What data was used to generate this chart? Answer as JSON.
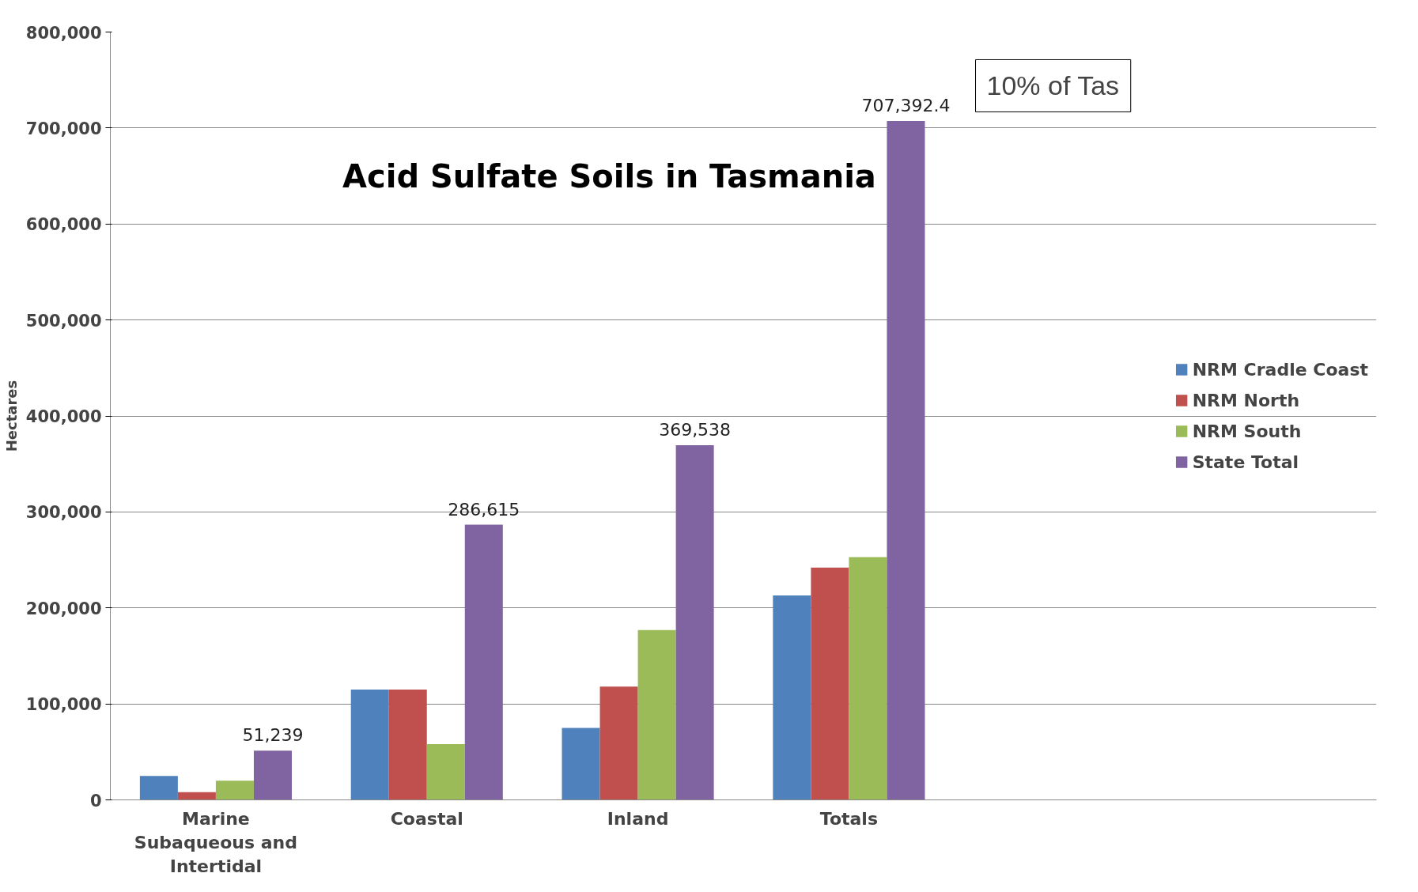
{
  "chart_data": {
    "type": "bar",
    "title": "Acid Sulfate Soils in Tasmania",
    "ylabel": "Hectares",
    "categories": [
      "Marine Subaqueous and Intertidal",
      "Coastal",
      "Inland",
      "Totals"
    ],
    "series": [
      {
        "name": "NRM Cradle Coast",
        "color": "#4f81bd",
        "values": [
          25000,
          115000,
          75000,
          213000
        ]
      },
      {
        "name": "NRM North",
        "color": "#c0504d",
        "values": [
          8000,
          115000,
          118000,
          242000
        ]
      },
      {
        "name": "NRM South",
        "color": "#9bbb59",
        "values": [
          20000,
          58000,
          177000,
          253000
        ]
      },
      {
        "name": "State Total",
        "color": "#8064a2",
        "values": [
          51239,
          286615,
          369538,
          707392.4
        ],
        "value_labels": [
          "51,239",
          "286,615",
          "369,538",
          "707,392.4"
        ]
      }
    ],
    "ylim": [
      0,
      800000
    ],
    "yticks": [
      {
        "value": 0,
        "label": "0"
      },
      {
        "value": 100000,
        "label": "100,000"
      },
      {
        "value": 200000,
        "label": "200,000"
      },
      {
        "value": 300000,
        "label": "300,000"
      },
      {
        "value": 400000,
        "label": "400,000"
      },
      {
        "value": 500000,
        "label": "500,000"
      },
      {
        "value": 600000,
        "label": "600,000"
      },
      {
        "value": 700000,
        "label": "700,000"
      },
      {
        "value": 800000,
        "label": "800,000"
      }
    ],
    "grid": "y",
    "legend": "right",
    "annotations": [
      "10% of Tas"
    ]
  }
}
